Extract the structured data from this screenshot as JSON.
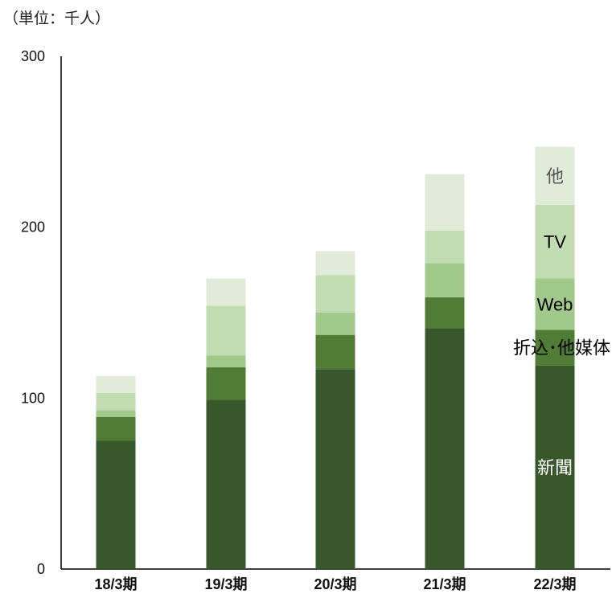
{
  "chart_data": {
    "type": "bar",
    "stacked": true,
    "unit_label": "（単位：千人）",
    "categories": [
      "18/3期",
      "19/3期",
      "20/3期",
      "21/3期",
      "22/3期"
    ],
    "ylim": [
      0,
      300
    ],
    "yticks": [
      0,
      100,
      200,
      300
    ],
    "grid": false,
    "legend": "inline labels on last bar",
    "series": [
      {
        "name": "新聞",
        "color": "#38582c",
        "label_color": "#ffffff",
        "values": [
          75,
          99,
          117,
          141,
          119
        ]
      },
      {
        "name": "折込･他媒体",
        "color": "#517c35",
        "label_color": "#000000",
        "values": [
          14,
          19,
          20,
          18,
          21
        ]
      },
      {
        "name": "Web",
        "color": "#a2c98c",
        "label_color": "#000000",
        "values": [
          4,
          7,
          13,
          20,
          30
        ]
      },
      {
        "name": "TV",
        "color": "#c1dcb0",
        "label_color": "#000000",
        "values": [
          10,
          29,
          22,
          19,
          43
        ]
      },
      {
        "name": "他",
        "color": "#e1ebd9",
        "label_color": "#555555",
        "values": [
          10,
          16,
          14,
          33,
          34
        ]
      }
    ]
  }
}
